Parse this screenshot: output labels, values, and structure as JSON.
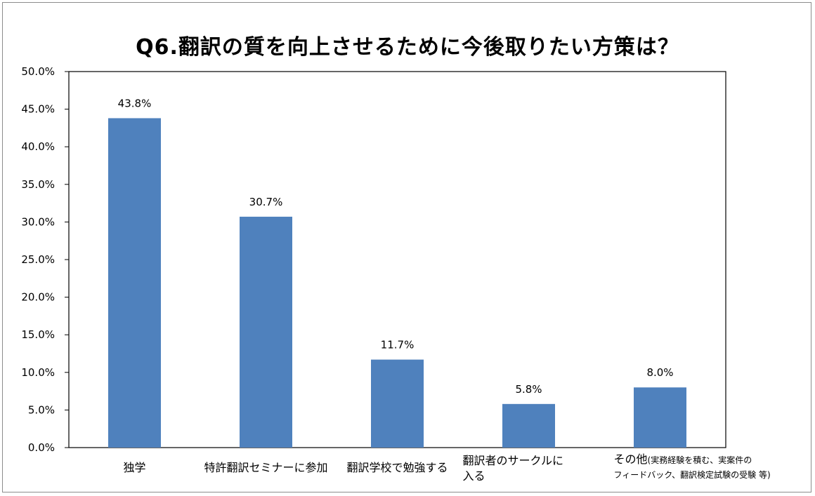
{
  "chart_data": {
    "type": "bar",
    "title": "Q6.翻訳の質を向上させるために今後取りたい方策は？",
    "xlabel": "",
    "ylabel": "",
    "categories": [
      "独学",
      "特許翻訳セミナーに参加",
      "翻訳学校で勉強する",
      "翻訳者のサークルに入る",
      "その他（実務経験を積む、実案件のフィードバック、翻訳検定試験の受験 等）"
    ],
    "category_lines": [
      [
        "独学"
      ],
      [
        "特許翻訳セミナーに参加"
      ],
      [
        "翻訳学校で勉強する"
      ],
      [
        "翻訳者のサークルに",
        "入る"
      ],
      [
        "その他",
        "(実務経験を積む、実案件の",
        "フィードバック、翻訳検定試験の受験 等)"
      ]
    ],
    "values": [
      43.8,
      30.7,
      11.7,
      5.8,
      8.0
    ],
    "data_labels": [
      "43.8%",
      "30.7%",
      "11.7%",
      "5.8%",
      "8.0%"
    ],
    "ylim": [
      0,
      50
    ],
    "yticks": [
      0,
      5,
      10,
      15,
      20,
      25,
      30,
      35,
      40,
      45,
      50
    ],
    "ytick_labels": [
      "0.0%",
      "5.0%",
      "10.0%",
      "15.0%",
      "20.0%",
      "25.0%",
      "30.0%",
      "35.0%",
      "40.0%",
      "45.0%",
      "50.0%"
    ],
    "grid": false,
    "legend": "none",
    "bar_color": "#4f81bd"
  }
}
